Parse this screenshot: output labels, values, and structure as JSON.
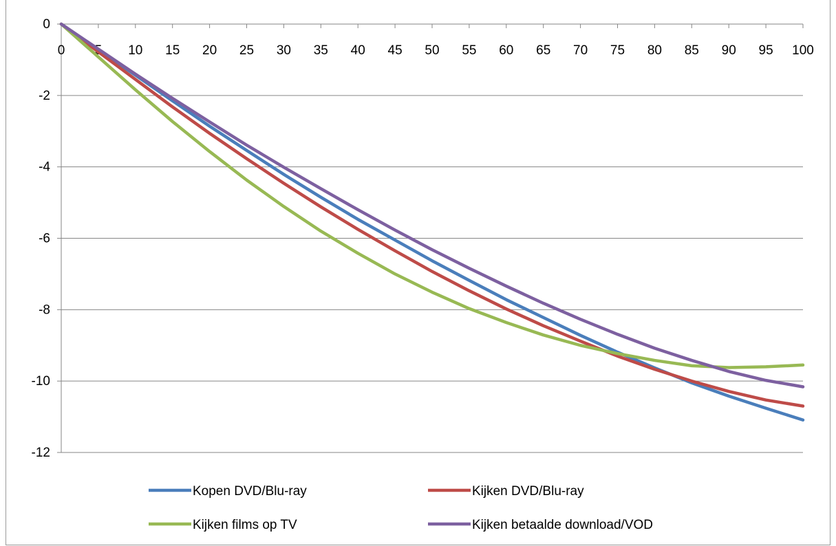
{
  "chart_data": {
    "type": "line",
    "title": "",
    "xlabel": "",
    "ylabel": "",
    "x": [
      0,
      5,
      10,
      15,
      20,
      25,
      30,
      35,
      40,
      45,
      50,
      55,
      60,
      65,
      70,
      75,
      80,
      85,
      90,
      95,
      100
    ],
    "xlim": [
      0,
      100
    ],
    "ylim": [
      -12,
      0
    ],
    "x_ticks": [
      0,
      5,
      10,
      15,
      20,
      25,
      30,
      35,
      40,
      45,
      50,
      55,
      60,
      65,
      70,
      75,
      80,
      85,
      90,
      95,
      100
    ],
    "y_ticks": [
      0,
      -2,
      -4,
      -6,
      -8,
      -10,
      -12
    ],
    "grid": "horizontal",
    "legend_position": "bottom",
    "series": [
      {
        "name": "Kopen DVD/Blu-ray",
        "color": "#4a7ebb",
        "values": [
          0,
          -0.72,
          -1.43,
          -2.15,
          -2.86,
          -3.54,
          -4.21,
          -4.85,
          -5.47,
          -6.05,
          -6.63,
          -7.18,
          -7.72,
          -8.22,
          -8.72,
          -9.19,
          -9.63,
          -10.05,
          -10.42,
          -10.76,
          -11.09
        ]
      },
      {
        "name": "Kijken DVD/Blu-ray",
        "color": "#be4b48",
        "values": [
          0,
          -0.78,
          -1.55,
          -2.32,
          -3.06,
          -3.77,
          -4.46,
          -5.12,
          -5.75,
          -6.35,
          -6.93,
          -7.47,
          -7.98,
          -8.45,
          -8.88,
          -9.3,
          -9.67,
          -10.0,
          -10.29,
          -10.53,
          -10.7
        ]
      },
      {
        "name": "Kijken films op TV",
        "color": "#98b954",
        "values": [
          0,
          -0.92,
          -1.84,
          -2.73,
          -3.57,
          -4.37,
          -5.11,
          -5.8,
          -6.42,
          -7.0,
          -7.51,
          -7.97,
          -8.36,
          -8.71,
          -9.0,
          -9.23,
          -9.42,
          -9.57,
          -9.62,
          -9.6,
          -9.55
        ]
      },
      {
        "name": "Kijken betaalde download/VOD",
        "color": "#7d60a0",
        "values": [
          0,
          -0.7,
          -1.4,
          -2.08,
          -2.74,
          -3.39,
          -4.01,
          -4.61,
          -5.2,
          -5.77,
          -6.32,
          -6.84,
          -7.34,
          -7.82,
          -8.27,
          -8.69,
          -9.08,
          -9.42,
          -9.73,
          -9.98,
          -10.16
        ]
      }
    ]
  }
}
